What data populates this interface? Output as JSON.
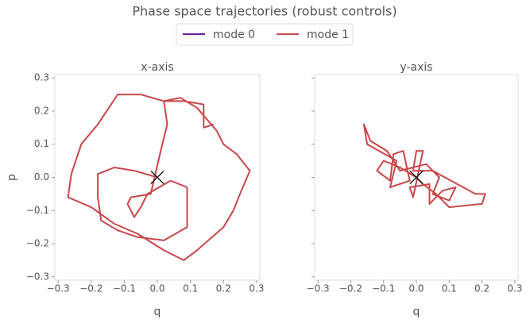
{
  "title": "Phase space trajectories (robust controls)",
  "legend": [
    {
      "name": "mode 0",
      "color": "#6a1b9a"
    },
    {
      "name": "mode 1",
      "color": "#c8474a"
    }
  ],
  "chart_data": [
    {
      "type": "line",
      "title": "x-axis",
      "xlabel": "q",
      "ylabel": "p",
      "xlim": [
        -0.31,
        0.31
      ],
      "ylim": [
        -0.31,
        0.31
      ],
      "xticks": [
        {
          "value": -0.3,
          "label": "−0.3"
        },
        {
          "value": -0.2,
          "label": "−0.2"
        },
        {
          "value": -0.1,
          "label": "−0.1"
        },
        {
          "value": 0,
          "label": "0.0"
        },
        0.1,
        0.2,
        0.3
      ],
      "yticks": [
        {
          "value": -0.3,
          "label": "−0.3"
        },
        {
          "value": -0.2,
          "label": "−0.2"
        },
        {
          "value": -0.1,
          "label": "−0.1"
        },
        {
          "value": 0,
          "label": "0.0"
        },
        0.1,
        0.2,
        0.3
      ],
      "series": [
        {
          "color": "#c8474a",
          "x": [
            0,
            -0.07,
            -0.13,
            -0.18,
            -0.18,
            -0.17,
            -0.12,
            -0.06,
            0.02,
            0.09,
            0.09,
            0.04,
            -0.03,
            -0.05,
            -0.07,
            -0.09,
            -0.08,
            -0.02,
            0.01,
            0.03,
            0.02,
            0.07,
            0.12,
            0.18,
            0.2,
            0.24,
            0.28,
            0.25,
            0.23,
            0.2,
            0.12,
            0.08,
            0.02,
            -0.06,
            -0.13,
            -0.2,
            -0.27,
            -0.26,
            -0.23,
            -0.18,
            -0.12,
            -0.05,
            0.02,
            0.08,
            0.14,
            0.14,
            0.17
          ],
          "values": [
            0,
            0.02,
            0.03,
            0.01,
            -0.06,
            -0.13,
            -0.16,
            -0.18,
            -0.19,
            -0.15,
            -0.03,
            -0.01,
            -0.05,
            -0.09,
            -0.12,
            -0.08,
            -0.06,
            -0.05,
            0.08,
            0.16,
            0.23,
            0.24,
            0.21,
            0.14,
            0.1,
            0.07,
            0.02,
            -0.05,
            -0.1,
            -0.15,
            -0.22,
            -0.25,
            -0.22,
            -0.17,
            -0.14,
            -0.09,
            -0.06,
            0.01,
            0.1,
            0.16,
            0.25,
            0.25,
            0.23,
            0.23,
            0.22,
            0.15,
            0.16
          ]
        }
      ],
      "marker": {
        "x": 0,
        "y": 0,
        "color": "#111111"
      }
    },
    {
      "type": "line",
      "title": "y-axis",
      "xlabel": "q",
      "sharey": true,
      "xlim": [
        -0.31,
        0.31
      ],
      "ylim": [
        -0.31,
        0.31
      ],
      "xticks": [
        {
          "value": -0.3,
          "label": "−0.3"
        },
        {
          "value": -0.2,
          "label": "−0.2"
        },
        {
          "value": -0.1,
          "label": "−0.1"
        },
        {
          "value": 0,
          "label": "0.0"
        },
        0.1,
        0.2,
        0.3
      ],
      "series": [
        {
          "color": "#c8474a",
          "x": [
            0,
            -0.05,
            -0.1,
            -0.12,
            -0.08,
            -0.07,
            -0.04,
            -0.02,
            -0.08,
            -0.06,
            -0.15,
            -0.16,
            -0.14,
            -0.09,
            -0.05,
            0.03,
            0.07,
            0.05,
            0.1,
            0.12,
            0.08,
            0.04,
            0.04,
            -0.02,
            -0.01,
            0.02,
            0,
            -0.01,
            0.05,
            0.18,
            0.21,
            0.2,
            0.1,
            0.06,
            0.02,
            0
          ],
          "values": [
            0,
            0.03,
            0.05,
            0.02,
            -0.01,
            0.07,
            0.08,
            -0.01,
            -0.03,
            0.05,
            0.1,
            0.16,
            0.11,
            0.08,
            0.02,
            0.04,
            0,
            -0.05,
            -0.07,
            -0.03,
            -0.04,
            -0.08,
            -0.02,
            -0.03,
            -0.06,
            0.08,
            0.08,
            0.02,
            0.02,
            -0.05,
            -0.05,
            -0.08,
            -0.09,
            -0.05,
            -0.02,
            0
          ]
        }
      ],
      "marker": {
        "x": 0,
        "y": 0,
        "color": "#111111"
      }
    }
  ]
}
